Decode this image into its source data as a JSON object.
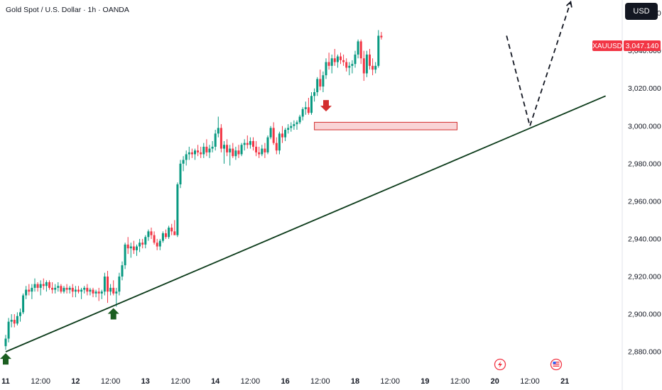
{
  "header": {
    "title": "Gold Spot / U.S. Dollar · 1h · OANDA",
    "currency_button": "USD"
  },
  "price_tag": {
    "symbol": "XAUUSD",
    "price": "3,047.140",
    "color": "#f23645"
  },
  "colors": {
    "up": "#089981",
    "down": "#f23645",
    "up_arrow": "#1b5e20",
    "down_arrow": "#d32f2f",
    "trendline": "#0c3b1a",
    "zone_fill": "#f8c9cc",
    "zone_stroke": "#d32f2f"
  },
  "events": [
    "flash-event-icon",
    "us-flag-event-icon"
  ],
  "chart_data": {
    "type": "candlestick",
    "title": "Gold Spot / U.S. Dollar · 1h · OANDA",
    "symbol": "XAUUSD",
    "last_price": 3047.14,
    "ylim": [
      2871,
      3067
    ],
    "y_ticks": [
      "3,060.000",
      "3,040.000",
      "3,020.000",
      "3,000.000",
      "2,980.000",
      "2,960.000",
      "2,940.000",
      "2,920.000",
      "2,900.000",
      "2,880.000"
    ],
    "y_tick_values": [
      3060,
      3040,
      3020,
      3000,
      2980,
      2960,
      2940,
      2920,
      2900,
      2880
    ],
    "x_ticks": [
      {
        "label": "11",
        "bold": true,
        "x": 0
      },
      {
        "label": "12:00",
        "bold": false,
        "x": 12
      },
      {
        "label": "12",
        "bold": true,
        "x": 24
      },
      {
        "label": "12:00",
        "bold": false,
        "x": 36
      },
      {
        "label": "13",
        "bold": true,
        "x": 48
      },
      {
        "label": "12:00",
        "bold": false,
        "x": 60
      },
      {
        "label": "14",
        "bold": true,
        "x": 72
      },
      {
        "label": "12:00",
        "bold": false,
        "x": 84
      },
      {
        "label": "16",
        "bold": true,
        "x": 96
      },
      {
        "label": "12:00",
        "bold": false,
        "x": 108
      },
      {
        "label": "18",
        "bold": true,
        "x": 120
      },
      {
        "label": "12:00",
        "bold": false,
        "x": 132
      },
      {
        "label": "19",
        "bold": true,
        "x": 144
      },
      {
        "label": "12:00",
        "bold": false,
        "x": 156
      },
      {
        "label": "20",
        "bold": true,
        "x": 168
      },
      {
        "label": "12:00",
        "bold": false,
        "x": 180
      },
      {
        "label": "21",
        "bold": true,
        "x": 192
      }
    ],
    "x_unit": "hourly bars since 11 00:00",
    "candles": [
      [
        2883.0,
        2889.0,
        2881.0,
        2887.0
      ],
      [
        2887.0,
        2898.0,
        2885.0,
        2896.0
      ],
      [
        2896.0,
        2900.0,
        2893.0,
        2897.0
      ],
      [
        2897.0,
        2900.0,
        2893.0,
        2895.0
      ],
      [
        2895.0,
        2901.0,
        2894.0,
        2899.0
      ],
      [
        2899.0,
        2903.0,
        2896.0,
        2901.0
      ],
      [
        2901.0,
        2911.0,
        2900.0,
        2910.0
      ],
      [
        2910.0,
        2915.0,
        2908.0,
        2913.0
      ],
      [
        2913.0,
        2916.0,
        2910.0,
        2912.0
      ],
      [
        2912.0,
        2916.0,
        2908.0,
        2914.0
      ],
      [
        2914.0,
        2919.0,
        2912.0,
        2916.0
      ],
      [
        2916.0,
        2917.0,
        2912.0,
        2914.0
      ],
      [
        2914.0,
        2918.0,
        2910.0,
        2916.0
      ],
      [
        2916.0,
        2919.0,
        2913.0,
        2915.0
      ],
      [
        2915.0,
        2918.0,
        2912.0,
        2917.0
      ],
      [
        2917.0,
        2918.0,
        2913.0,
        2914.0
      ],
      [
        2914.0,
        2917.0,
        2911.0,
        2913.0
      ],
      [
        2913.0,
        2916.0,
        2911.0,
        2914.0
      ],
      [
        2914.0,
        2917.0,
        2912.0,
        2915.0
      ],
      [
        2915.0,
        2916.0,
        2911.0,
        2912.0
      ],
      [
        2912.0,
        2915.0,
        2911.0,
        2914.0
      ],
      [
        2914.0,
        2916.0,
        2911.0,
        2913.0
      ],
      [
        2913.0,
        2915.0,
        2911.0,
        2914.0
      ],
      [
        2914.0,
        2916.0,
        2909.0,
        2912.0
      ],
      [
        2912.0,
        2915.0,
        2909.0,
        2913.0
      ],
      [
        2913.0,
        2915.0,
        2911.0,
        2912.0
      ],
      [
        2912.0,
        2914.0,
        2908.0,
        2913.0
      ],
      [
        2913.0,
        2915.0,
        2911.0,
        2914.0
      ],
      [
        2914.0,
        2916.0,
        2910.0,
        2912.0
      ],
      [
        2912.0,
        2914.0,
        2910.0,
        2913.0
      ],
      [
        2913.0,
        2914.0,
        2909.0,
        2911.0
      ],
      [
        2911.0,
        2913.0,
        2909.0,
        2912.0
      ],
      [
        2912.0,
        2914.0,
        2907.0,
        2911.0
      ],
      [
        2911.0,
        2913.0,
        2908.0,
        2912.0
      ],
      [
        2912.0,
        2922.0,
        2910.0,
        2920.0
      ],
      [
        2920.0,
        2923.0,
        2906.0,
        2912.0
      ],
      [
        2912.0,
        2916.0,
        2910.0,
        2914.0
      ],
      [
        2914.0,
        2918.0,
        2910.0,
        2911.0
      ],
      [
        2911.0,
        2914.0,
        2904.0,
        2912.0
      ],
      [
        2912.0,
        2922.0,
        2910.0,
        2920.0
      ],
      [
        2920.0,
        2928.0,
        2918.0,
        2926.0
      ],
      [
        2926.0,
        2938.0,
        2924.0,
        2937.0
      ],
      [
        2937.0,
        2941.0,
        2932.0,
        2935.0
      ],
      [
        2935.0,
        2938.0,
        2930.0,
        2936.0
      ],
      [
        2936.0,
        2939.0,
        2932.0,
        2934.0
      ],
      [
        2934.0,
        2937.0,
        2931.0,
        2936.0
      ],
      [
        2936.0,
        2940.0,
        2933.0,
        2938.0
      ],
      [
        2938.0,
        2940.0,
        2935.0,
        2937.0
      ],
      [
        2937.0,
        2942.0,
        2935.0,
        2941.0
      ],
      [
        2941.0,
        2945.0,
        2939.0,
        2944.0
      ],
      [
        2944.0,
        2946.0,
        2940.0,
        2942.0
      ],
      [
        2942.0,
        2944.0,
        2937.0,
        2938.0
      ],
      [
        2938.0,
        2940.0,
        2934.0,
        2936.0
      ],
      [
        2936.0,
        2940.0,
        2934.0,
        2939.0
      ],
      [
        2939.0,
        2944.0,
        2938.0,
        2943.0
      ],
      [
        2943.0,
        2945.0,
        2940.0,
        2941.0
      ],
      [
        2941.0,
        2947.0,
        2940.0,
        2946.0
      ],
      [
        2946.0,
        2948.0,
        2942.0,
        2944.0
      ],
      [
        2944.0,
        2950.0,
        2942.0,
        2942.0
      ],
      [
        2942.0,
        2970.0,
        2941.0,
        2969.0
      ],
      [
        2969.0,
        2982.0,
        2967.0,
        2980.0
      ],
      [
        2980.0,
        2984.0,
        2976.0,
        2982.0
      ],
      [
        2982.0,
        2987.0,
        2979.0,
        2985.0
      ],
      [
        2985.0,
        2989.0,
        2982.0,
        2986.0
      ],
      [
        2986.0,
        2988.0,
        2983.0,
        2985.0
      ],
      [
        2985.0,
        2988.0,
        2982.0,
        2987.0
      ],
      [
        2987.0,
        2990.0,
        2984.0,
        2986.0
      ],
      [
        2986.0,
        2989.0,
        2983.0,
        2985.0
      ],
      [
        2985.0,
        2991.0,
        2983.0,
        2989.0
      ],
      [
        2989.0,
        2993.0,
        2984.0,
        2986.0
      ],
      [
        2986.0,
        2990.0,
        2983.0,
        2988.0
      ],
      [
        2988.0,
        2992.0,
        2986.0,
        2989.0
      ],
      [
        2989.0,
        2998.0,
        2987.0,
        2996.0
      ],
      [
        2996.0,
        3005.0,
        2994.0,
        2999.0
      ],
      [
        2999.0,
        3001.0,
        2986.0,
        2988.0
      ],
      [
        2988.0,
        2992.0,
        2980.0,
        2990.0
      ],
      [
        2990.0,
        2993.0,
        2984.0,
        2986.0
      ],
      [
        2986.0,
        2990.0,
        2979.0,
        2988.0
      ],
      [
        2988.0,
        2991.0,
        2983.0,
        2984.0
      ],
      [
        2984.0,
        2989.0,
        2982.0,
        2987.0
      ],
      [
        2987.0,
        2990.0,
        2983.0,
        2985.0
      ],
      [
        2985.0,
        2991.0,
        2984.0,
        2990.0
      ],
      [
        2990.0,
        2993.0,
        2987.0,
        2991.0
      ],
      [
        2991.0,
        2995.0,
        2988.0,
        2990.0
      ],
      [
        2990.0,
        2994.0,
        2988.0,
        2992.0
      ],
      [
        2992.0,
        2994.0,
        2987.0,
        2989.0
      ],
      [
        2989.0,
        2992.0,
        2984.0,
        2986.0
      ],
      [
        2986.0,
        2989.0,
        2983.0,
        2985.0
      ],
      [
        2985.0,
        2990.0,
        2984.0,
        2988.0
      ],
      [
        2988.0,
        2991.0,
        2983.0,
        2986.0
      ],
      [
        2986.0,
        2995.0,
        2985.0,
        2994.0
      ],
      [
        2994.0,
        3000.0,
        2993.0,
        2999.0
      ],
      [
        2999.0,
        3002.0,
        2990.0,
        2991.0
      ],
      [
        2991.0,
        2994.0,
        2985.0,
        2987.0
      ],
      [
        2987.0,
        2997.0,
        2985.0,
        2996.0
      ],
      [
        2996.0,
        3000.0,
        2991.0,
        2994.0
      ],
      [
        2994.0,
        2999.0,
        2992.0,
        2998.0
      ],
      [
        2998.0,
        3001.0,
        2996.0,
        2999.0
      ],
      [
        2999.0,
        3002.0,
        2997.0,
        3000.0
      ],
      [
        3000.0,
        3003.0,
        2998.0,
        3001.0
      ],
      [
        3001.0,
        3003.0,
        2998.0,
        3002.0
      ],
      [
        3002.0,
        3006.0,
        3001.0,
        3005.0
      ],
      [
        3005.0,
        3010.0,
        3003.0,
        3009.0
      ],
      [
        3009.0,
        3013.0,
        3006.0,
        3010.0
      ],
      [
        3010.0,
        3015.0,
        3006.0,
        3007.0
      ],
      [
        3007.0,
        3018.0,
        3006.0,
        3016.0
      ],
      [
        3016.0,
        3020.0,
        3013.0,
        3018.0
      ],
      [
        3018.0,
        3026.0,
        3016.0,
        3025.0
      ],
      [
        3025.0,
        3030.0,
        3019.0,
        3021.0
      ],
      [
        3021.0,
        3029.0,
        3018.0,
        3027.0
      ],
      [
        3027.0,
        3036.0,
        3025.0,
        3034.0
      ],
      [
        3034.0,
        3039.0,
        3030.0,
        3032.0
      ],
      [
        3032.0,
        3038.0,
        3028.0,
        3036.0
      ],
      [
        3036.0,
        3041.0,
        3032.0,
        3034.0
      ],
      [
        3034.0,
        3038.0,
        3031.0,
        3037.0
      ],
      [
        3037.0,
        3039.0,
        3033.0,
        3035.0
      ],
      [
        3035.0,
        3038.0,
        3032.0,
        3034.0
      ],
      [
        3034.0,
        3036.0,
        3029.0,
        3031.0
      ],
      [
        3031.0,
        3034.0,
        3027.0,
        3032.0
      ],
      [
        3032.0,
        3035.0,
        3028.0,
        3033.0
      ],
      [
        3033.0,
        3040.0,
        3031.0,
        3038.0
      ],
      [
        3038.0,
        3046.0,
        3036.0,
        3045.0
      ],
      [
        3045.0,
        3046.0,
        3033.0,
        3036.0
      ],
      [
        3036.0,
        3040.0,
        3024.0,
        3028.0
      ],
      [
        3028.0,
        3040.0,
        3026.0,
        3038.0
      ],
      [
        3038.0,
        3041.0,
        3030.0,
        3032.0
      ],
      [
        3032.0,
        3036.0,
        3027.0,
        3030.0
      ],
      [
        3030.0,
        3034.0,
        3028.0,
        3032.0
      ],
      [
        3032.0,
        3051.0,
        3031.0,
        3048.0
      ],
      [
        3048.0,
        3050.0,
        3046.0,
        3047.14
      ]
    ],
    "support_zone": {
      "x_start": 106,
      "x_end": 155,
      "y_low": 2998,
      "y_high": 3002
    },
    "trendline": [
      [
        0,
        2880
      ],
      [
        206,
        3016
      ]
    ],
    "projection_path": [
      [
        172,
        3048
      ],
      [
        180,
        3000
      ],
      [
        194,
        3066
      ]
    ],
    "up_markers": [
      {
        "x": 0,
        "y": 2880
      },
      {
        "x": 37,
        "y": 2904
      }
    ],
    "down_markers": [
      {
        "x": 110,
        "y": 3007
      }
    ],
    "event_markers": [
      {
        "x": 169,
        "icon": "flash-event-icon"
      },
      {
        "x": 191,
        "icon": "us-flag-event-icon"
      }
    ]
  }
}
